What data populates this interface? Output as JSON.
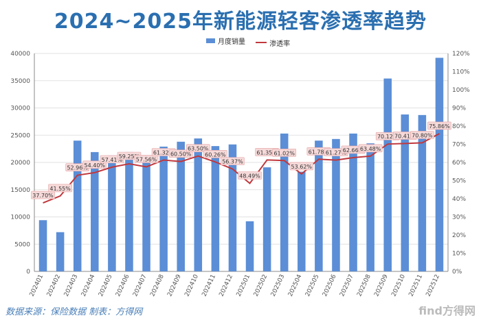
{
  "chart_data": {
    "type": "bar",
    "title": "2024~2025年新能源轻客渗透率趋势",
    "legend": [
      "月度销量",
      "渗透率"
    ],
    "categories": [
      "202401",
      "202402",
      "202403",
      "202404",
      "202405",
      "202406",
      "202407",
      "202408",
      "202409",
      "202410",
      "202411",
      "202412",
      "202501",
      "202502",
      "202503",
      "202504",
      "202505",
      "202506",
      "202507",
      "202508",
      "202509",
      "202510",
      "202511",
      "202512"
    ],
    "series": [
      {
        "name": "月度销量",
        "type": "bar",
        "axis": "left",
        "values": [
          9400,
          7200,
          24000,
          21900,
          21300,
          21900,
          20100,
          22900,
          23800,
          24400,
          23000,
          23300,
          9200,
          19100,
          25300,
          18300,
          24000,
          24300,
          25300,
          23500,
          35400,
          28800,
          28700,
          39200
        ]
      },
      {
        "name": "渗透率",
        "type": "line",
        "axis": "right",
        "values": [
          37.7,
          41.55,
          52.96,
          54.4,
          57.41,
          59.25,
          57.56,
          61.32,
          60.5,
          63.5,
          60.26,
          56.37,
          48.49,
          61.35,
          61.02,
          53.62,
          61.78,
          61.27,
          62.66,
          63.48,
          70.12,
          70.41,
          70.8,
          75.86
        ],
        "labels": [
          "37.70%",
          "41.55%",
          "52.96%",
          "54.40%",
          "57.41%",
          "59.25%",
          "57.56%",
          "61.32%",
          "60.50%",
          "63.50%",
          "60.26%",
          "56.37%",
          "48.49%",
          "61.35%",
          "61.02%",
          "53.62%",
          "61.78%",
          "61.27%",
          "62.66%",
          "63.48%",
          "70.12%",
          "70.41%",
          "70.80%",
          "75.86%"
        ]
      }
    ],
    "y_left": {
      "min": 0,
      "max": 40000,
      "ticks": [
        "0",
        "5000",
        "10000",
        "15000",
        "20000",
        "25000",
        "30000",
        "35000",
        "40000"
      ]
    },
    "y_right": {
      "min": 0,
      "max": 120,
      "ticks": [
        "0%",
        "10%",
        "20%",
        "30%",
        "40%",
        "50%",
        "60%",
        "70%",
        "80%",
        "90%",
        "100%",
        "110%",
        "120%"
      ]
    },
    "colors": {
      "bar": "#5b8ed6",
      "line": "#c0383d",
      "title": "#2a6fb0",
      "grid": "#e2e2e2",
      "label_bg": "#f6d9d9"
    }
  },
  "footer": {
    "source": "数据来源：保险数据 制表：方得网",
    "watermark": "find方得网"
  }
}
